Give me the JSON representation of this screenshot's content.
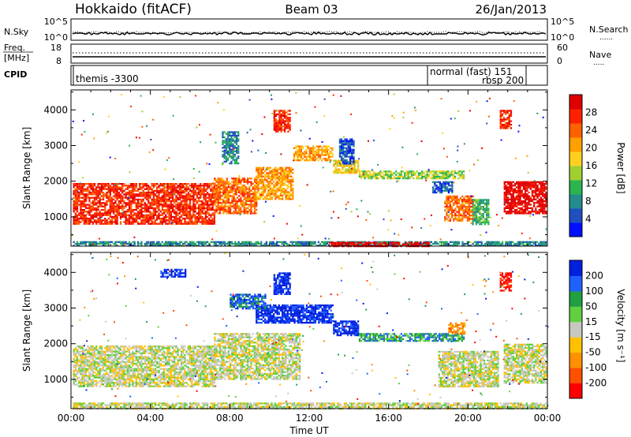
{
  "header": {
    "station": "Hokkaido (fitACF)",
    "beam": "Beam 03",
    "date": "26/Jan/2013"
  },
  "time_axis": {
    "title": "Time UT",
    "ticks": [
      "00:00",
      "04:00",
      "08:00",
      "12:00",
      "16:00",
      "20:00",
      "00:00"
    ],
    "range_hours": [
      0,
      24
    ]
  },
  "strip_noise": {
    "left_label": "N.Sky",
    "right_label": "N.Search",
    "left_ticks": [
      "10^5",
      "10^0"
    ],
    "right_ticks": [
      "10^5",
      "10^0"
    ]
  },
  "strip_freq": {
    "left_label_1": "Freq.",
    "left_label_2": "[MHz]",
    "right_label": "Nave",
    "left_ticks": [
      "18",
      "8"
    ],
    "right_ticks": [
      "60",
      "0"
    ]
  },
  "strip_cpid": {
    "label": "CPID",
    "modes": [
      {
        "text": "themis -3300",
        "start_hour": 0.0
      },
      {
        "text": "normal (fast) 151",
        "start_hour": 18.1
      },
      {
        "text": "rbsp 200",
        "start_hour": 21.5
      }
    ]
  },
  "chart_data": [
    {
      "type": "heatmap",
      "ylabel": "Slant Range [km]",
      "xlabel": "",
      "ylim": [
        180,
        4560
      ],
      "yticks": [
        1000,
        2000,
        3000,
        4000
      ],
      "colorbar": {
        "title": "Power [dB]",
        "ticks": [
          "4",
          "8",
          "12",
          "16",
          "20",
          "24",
          "28"
        ],
        "colors": [
          "#0010ff",
          "#2050c0",
          "#248c8c",
          "#2cb450",
          "#a0d030",
          "#ffd020",
          "#ffa000",
          "#ff6000",
          "#ff2000",
          "#e00000"
        ]
      },
      "regions": [
        {
          "t0": 0.1,
          "t1": 7.2,
          "r0": 800,
          "r1": 1950,
          "level": 8
        },
        {
          "t0": 7.2,
          "t1": 9.3,
          "r0": 1100,
          "r1": 2100,
          "level": 7
        },
        {
          "t0": 9.3,
          "t1": 11.2,
          "r0": 1500,
          "r1": 2400,
          "level": 6
        },
        {
          "t0": 11.2,
          "t1": 13.2,
          "r0": 2600,
          "r1": 3000,
          "level": 6
        },
        {
          "t0": 13.2,
          "t1": 14.5,
          "r0": 2250,
          "r1": 2600,
          "level": 5
        },
        {
          "t0": 14.5,
          "t1": 19.8,
          "r0": 2100,
          "r1": 2300,
          "level": 4
        },
        {
          "t0": 10.2,
          "t1": 11.0,
          "r0": 3400,
          "r1": 4000,
          "level": 8
        },
        {
          "t0": 18.8,
          "t1": 20.2,
          "r0": 900,
          "r1": 1600,
          "level": 7
        },
        {
          "t0": 20.2,
          "t1": 21.0,
          "r0": 800,
          "r1": 1500,
          "level": 3
        },
        {
          "t0": 21.8,
          "t1": 23.9,
          "r0": 1100,
          "r1": 2000,
          "level": 9
        },
        {
          "t0": 21.6,
          "t1": 22.2,
          "r0": 3500,
          "r1": 4000,
          "level": 8
        },
        {
          "t0": 7.6,
          "t1": 8.4,
          "r0": 2500,
          "r1": 3400,
          "level": 2
        },
        {
          "t0": 13.5,
          "t1": 14.2,
          "r0": 2500,
          "r1": 3200,
          "level": 1
        },
        {
          "t0": 18.2,
          "t1": 19.2,
          "r0": 1700,
          "r1": 2000,
          "level": 1
        },
        {
          "t0": 0.1,
          "t1": 23.9,
          "r0": 200,
          "r1": 320,
          "level": 2
        },
        {
          "t0": 13.0,
          "t1": 18.0,
          "r0": 200,
          "r1": 300,
          "level": 9
        }
      ]
    },
    {
      "type": "heatmap",
      "ylabel": "Slant Range [km]",
      "xlabel": "Time UT",
      "ylim": [
        180,
        4560
      ],
      "yticks": [
        1000,
        2000,
        3000,
        4000
      ],
      "colorbar": {
        "title": "Velocity [m s⁻¹]",
        "ticks": [
          "200",
          "100",
          "50",
          "15",
          "-15",
          "-50",
          "-100",
          "-200"
        ],
        "colors": [
          "#0020e0",
          "#2060ff",
          "#20a040",
          "#60d040",
          "#c8c8c0",
          "#ffc000",
          "#ff9000",
          "#ff5000",
          "#ff0000"
        ]
      },
      "regions": [
        {
          "t0": 0.1,
          "t1": 7.2,
          "r0": 800,
          "r1": 1950,
          "level": 4
        },
        {
          "t0": 7.2,
          "t1": 11.5,
          "r0": 1000,
          "r1": 2300,
          "level": 4
        },
        {
          "t0": 9.3,
          "t1": 13.2,
          "r0": 2600,
          "r1": 3100,
          "level": 0
        },
        {
          "t0": 13.2,
          "t1": 14.5,
          "r0": 2250,
          "r1": 2650,
          "level": 0
        },
        {
          "t0": 14.5,
          "t1": 19.8,
          "r0": 2100,
          "r1": 2300,
          "level": 2
        },
        {
          "t0": 10.2,
          "t1": 11.0,
          "r0": 3400,
          "r1": 4000,
          "level": 0
        },
        {
          "t0": 8.0,
          "t1": 9.8,
          "r0": 3000,
          "r1": 3400,
          "level": 1
        },
        {
          "t0": 18.5,
          "t1": 21.5,
          "r0": 800,
          "r1": 1800,
          "level": 4
        },
        {
          "t0": 21.8,
          "t1": 23.9,
          "r0": 900,
          "r1": 2000,
          "level": 4
        },
        {
          "t0": 21.6,
          "t1": 22.2,
          "r0": 3500,
          "r1": 4000,
          "level": 8
        },
        {
          "t0": 19.0,
          "t1": 19.8,
          "r0": 2300,
          "r1": 2600,
          "level": 6
        },
        {
          "t0": 0.1,
          "t1": 23.9,
          "r0": 200,
          "r1": 350,
          "level": 4
        },
        {
          "t0": 4.5,
          "t1": 5.8,
          "r0": 3900,
          "r1": 4100,
          "level": 0
        }
      ]
    }
  ]
}
